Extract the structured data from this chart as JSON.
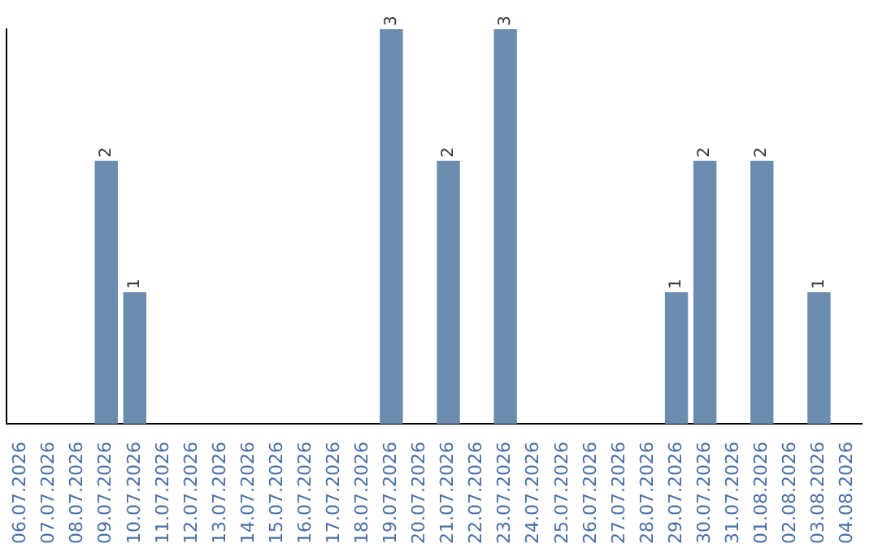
{
  "chart_data": {
    "type": "bar",
    "categories": [
      "06.07.2026",
      "07.07.2026",
      "08.07.2026",
      "09.07.2026",
      "10.07.2026",
      "11.07.2026",
      "12.07.2026",
      "13.07.2026",
      "14.07.2026",
      "15.07.2026",
      "16.07.2026",
      "17.07.2026",
      "18.07.2026",
      "19.07.2026",
      "20.07.2026",
      "21.07.2026",
      "22.07.2026",
      "23.07.2026",
      "24.07.2026",
      "25.07.2026",
      "26.07.2026",
      "27.07.2026",
      "28.07.2026",
      "29.07.2026",
      "30.07.2026",
      "31.07.2026",
      "01.08.2026",
      "02.08.2026",
      "03.08.2026",
      "04.08.2026"
    ],
    "values": [
      null,
      null,
      null,
      2,
      1,
      null,
      null,
      null,
      null,
      null,
      null,
      null,
      null,
      3,
      null,
      2,
      null,
      3,
      null,
      null,
      null,
      null,
      null,
      1,
      2,
      null,
      2,
      null,
      1,
      null
    ],
    "color": "#6a8caf",
    "data_labels": true,
    "grid": false,
    "legend": false,
    "tick_labels": "x"
  }
}
